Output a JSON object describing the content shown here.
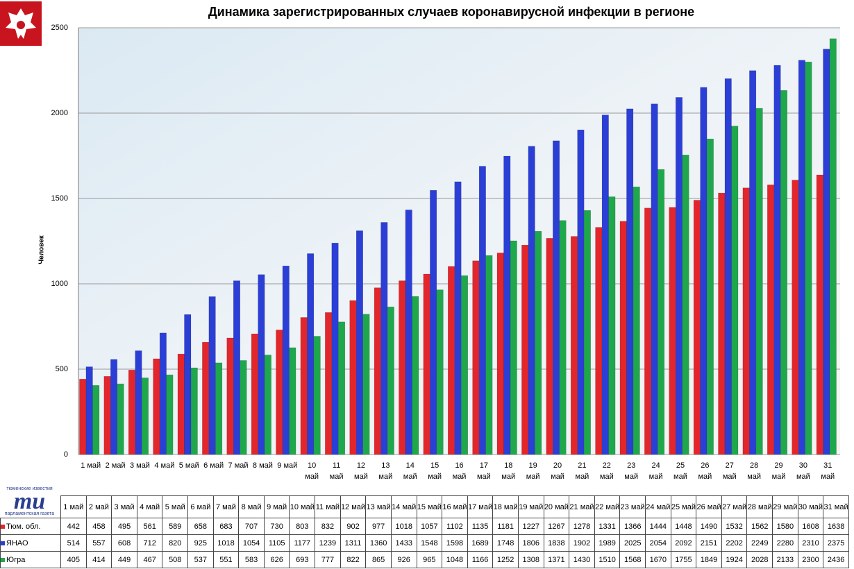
{
  "chart_data": {
    "type": "bar",
    "title": "Динамика зарегистрированных случаев коронавирусной инфекции в регионе",
    "y_label": "Человек",
    "categories": [
      "1 май",
      "2 май",
      "3 май",
      "4 май",
      "5 май",
      "6 май",
      "7 май",
      "8 май",
      "9 май",
      "10 май",
      "11 май",
      "12 май",
      "13 май",
      "14 май",
      "15 май",
      "16 май",
      "17 май",
      "18 май",
      "19 май",
      "20 май",
      "21 май",
      "22 май",
      "23 май",
      "24 май",
      "25 май",
      "26 май",
      "27 май",
      "28 май",
      "29 май",
      "30 май",
      "31 май"
    ],
    "series": [
      {
        "name": "Тюм. обл.",
        "color": "#e3262b",
        "values": [
          442,
          458,
          495,
          561,
          589,
          658,
          683,
          707,
          730,
          803,
          832,
          902,
          977,
          1018,
          1057,
          1102,
          1135,
          1181,
          1227,
          1267,
          1278,
          1331,
          1366,
          1444,
          1448,
          1490,
          1532,
          1562,
          1580,
          1608,
          1638
        ]
      },
      {
        "name": "ЯНАО",
        "color": "#2b3fd6",
        "values": [
          514,
          557,
          608,
          712,
          820,
          925,
          1018,
          1054,
          1105,
          1177,
          1239,
          1311,
          1360,
          1433,
          1548,
          1598,
          1689,
          1748,
          1806,
          1838,
          1902,
          1989,
          2025,
          2054,
          2092,
          2151,
          2202,
          2249,
          2280,
          2310,
          2375
        ]
      },
      {
        "name": "Югра",
        "color": "#1ea84b",
        "values": [
          405,
          414,
          449,
          467,
          508,
          537,
          551,
          583,
          626,
          693,
          777,
          822,
          865,
          926,
          965,
          1048,
          1166,
          1252,
          1308,
          1371,
          1430,
          1510,
          1568,
          1670,
          1755,
          1849,
          1924,
          2028,
          2133,
          2300,
          2436
        ]
      }
    ],
    "ylim": [
      0,
      2500
    ],
    "yticks": [
      0,
      500,
      1000,
      1500,
      2000,
      2500
    ],
    "grid": true
  },
  "logo": {
    "top": "тюменские известия",
    "mark": "ти",
    "bottom": "парламентская газета"
  }
}
